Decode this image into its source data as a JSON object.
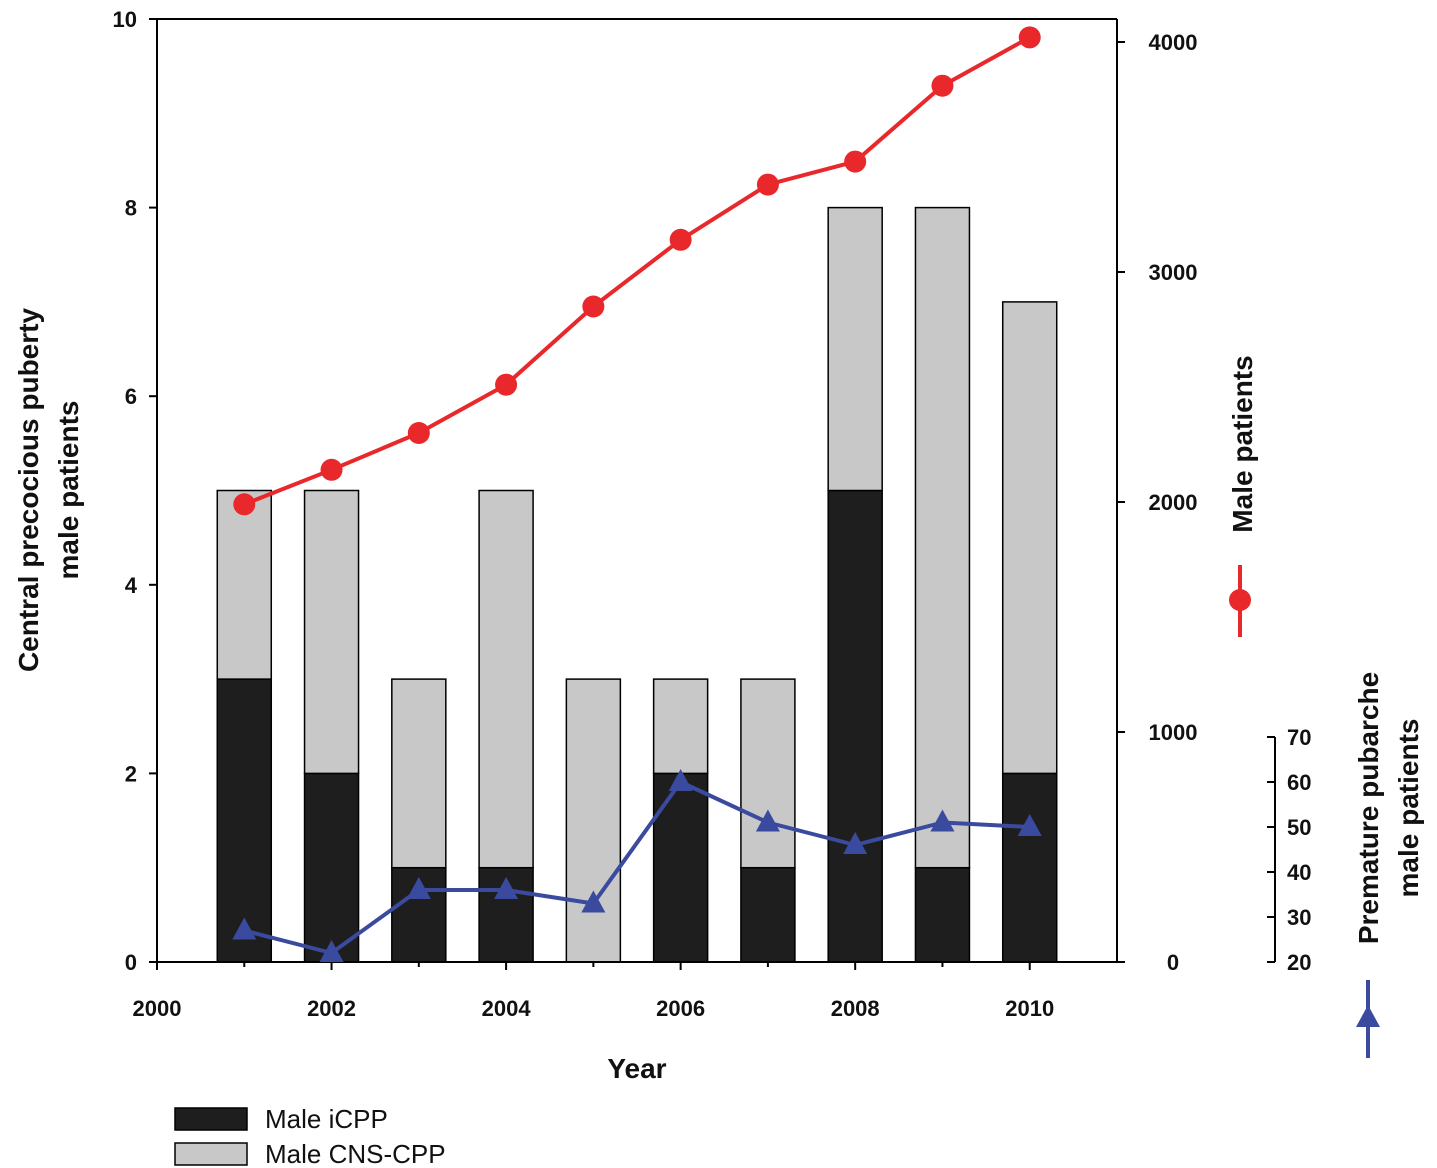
{
  "chart_data": {
    "type": "bar",
    "xlabel": "Year",
    "ylabel_lines": [
      "Central precocious puberty",
      "male patients"
    ],
    "right_axis_label": "Male patients",
    "right_axis2_label_lines": [
      "Premature pubarche",
      "male patients"
    ],
    "x_ticks": [
      "2000",
      "2002",
      "2004",
      "2006",
      "2008",
      "2010"
    ],
    "x_tick_values": [
      2000,
      2002,
      2004,
      2006,
      2008,
      2010
    ],
    "xlim": [
      2000,
      2011
    ],
    "ylim": [
      0,
      10
    ],
    "y_ticks": [
      "0",
      "2",
      "4",
      "6",
      "8",
      "10"
    ],
    "y_tick_values": [
      0,
      2,
      4,
      6,
      8,
      10
    ],
    "ylim_right": [
      0,
      4100
    ],
    "y_right_ticks": [
      "0",
      "1000",
      "2000",
      "3000",
      "4000"
    ],
    "y_right_tick_values": [
      0,
      1000,
      2000,
      3000,
      4000
    ],
    "ylim_right2": [
      20,
      70
    ],
    "y_right2_ticks": [
      "20",
      "30",
      "40",
      "50",
      "60",
      "70"
    ],
    "y_right2_tick_values": [
      20,
      30,
      40,
      50,
      60,
      70
    ],
    "years": [
      2001,
      2002,
      2003,
      2004,
      2005,
      2006,
      2007,
      2008,
      2009,
      2010
    ],
    "stacked_series": [
      {
        "name": "Male iCPP",
        "color": "#1e1e1e",
        "values": [
          3,
          2,
          1,
          1,
          0,
          2,
          1,
          5,
          1,
          2
        ]
      },
      {
        "name": "Male CNS-CPP",
        "color": "#c8c8c8",
        "values": [
          2,
          3,
          2,
          4,
          3,
          1,
          2,
          3,
          7,
          5
        ]
      }
    ],
    "line_series": [
      {
        "name": "Male patients",
        "axis": "right",
        "color": "#e8282a",
        "marker": "circle",
        "values": [
          1990,
          2140,
          2300,
          2510,
          2850,
          3140,
          3380,
          3480,
          3810,
          4020
        ]
      },
      {
        "name": "Premature pubarche male patients",
        "axis": "right2",
        "color": "#3a4a9e",
        "marker": "triangle",
        "values": [
          27,
          22,
          36,
          36,
          33,
          60,
          51,
          46,
          51,
          50
        ]
      }
    ],
    "legend_position": "bottom-left",
    "grid": false
  }
}
